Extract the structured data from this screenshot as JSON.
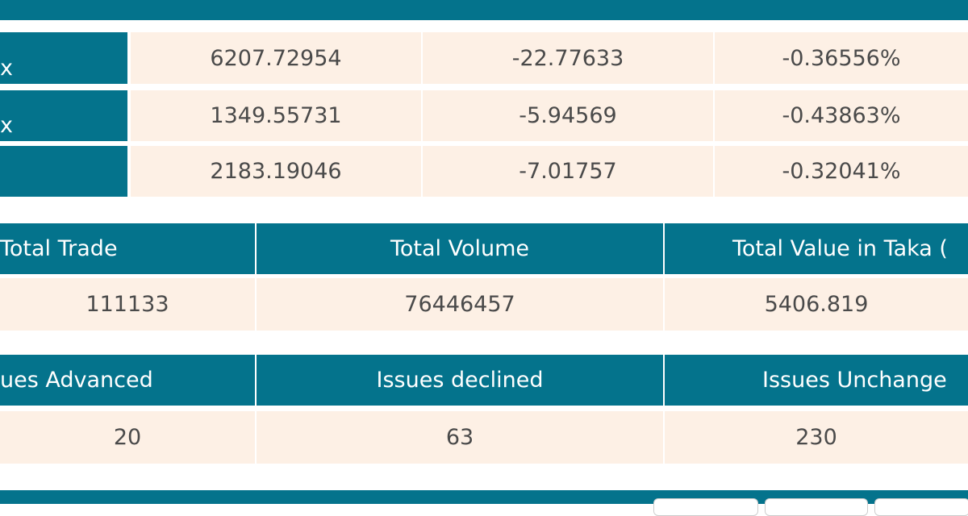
{
  "index_table": {
    "rows": [
      {
        "label": "x",
        "value": "6207.72954",
        "change": "-22.77633",
        "percent": "-0.36556%"
      },
      {
        "label": "x",
        "value": "1349.55731",
        "change": "-5.94569",
        "percent": "-0.43863%"
      },
      {
        "value": "2183.19046",
        "change": "-7.01757",
        "percent": "-0.32041%"
      }
    ]
  },
  "trade_table": {
    "headers": [
      "Total Trade",
      "Total Volume",
      "Total Value in Taka ("
    ],
    "values": [
      "111133",
      "76446457",
      "5406.819"
    ]
  },
  "issues_table": {
    "headers": [
      "ues Advanced",
      "Issues declined",
      "Issues Unchange"
    ],
    "values": [
      "20",
      "63",
      "230"
    ]
  }
}
